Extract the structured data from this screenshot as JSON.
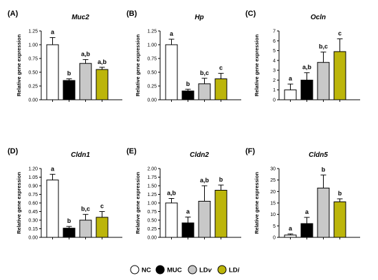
{
  "chart_data": [
    {
      "type": "bar",
      "panel": "(A)",
      "title": "Muc2",
      "ylabel": "Relative gene expression",
      "ylim": [
        0,
        1.25
      ],
      "yticks": [
        "0.00",
        "0.25",
        "0.50",
        "0.75",
        "1.00",
        "1.25"
      ],
      "categories": [
        "NC",
        "MUC",
        "LDv",
        "LDi"
      ],
      "values": [
        1.0,
        0.35,
        0.66,
        0.55
      ],
      "errors": [
        0.13,
        0.03,
        0.07,
        0.04
      ],
      "significance": [
        "a",
        "b",
        "a,b",
        "a,b"
      ]
    },
    {
      "type": "bar",
      "panel": "(B)",
      "title": "Hp",
      "ylabel": "Relative gene expression",
      "ylim": [
        0,
        1.25
      ],
      "yticks": [
        "0.00",
        "0.25",
        "0.50",
        "0.75",
        "1.00",
        "1.25"
      ],
      "categories": [
        "NC",
        "MUC",
        "LDv",
        "LDi"
      ],
      "values": [
        1.0,
        0.16,
        0.29,
        0.38
      ],
      "errors": [
        0.1,
        0.03,
        0.1,
        0.1
      ],
      "significance": [
        "a",
        "b",
        "b,c",
        "c"
      ]
    },
    {
      "type": "bar",
      "panel": "(C)",
      "title": "Ocln",
      "ylabel": "Relative gene expression",
      "ylim": [
        0,
        7
      ],
      "yticks": [
        "0",
        "1",
        "2",
        "3",
        "4",
        "5",
        "6",
        "7"
      ],
      "categories": [
        "NC",
        "MUC",
        "LDv",
        "LDi"
      ],
      "values": [
        1.0,
        2.0,
        3.8,
        4.9
      ],
      "errors": [
        0.6,
        0.75,
        1.05,
        1.3
      ],
      "significance": [
        "a",
        "a,b",
        "b,c",
        "c"
      ]
    },
    {
      "type": "bar",
      "panel": "(D)",
      "title": "Cldn1",
      "ylabel": "Relative gene expression",
      "ylim": [
        0,
        1.2
      ],
      "yticks": [
        "0.00",
        "0.15",
        "0.30",
        "0.45",
        "0.60",
        "0.75",
        "0.90",
        "1.05",
        "1.20"
      ],
      "categories": [
        "NC",
        "MUC",
        "LDv",
        "LDi"
      ],
      "values": [
        1.0,
        0.16,
        0.3,
        0.35
      ],
      "errors": [
        0.1,
        0.03,
        0.1,
        0.1
      ],
      "significance": [
        "a",
        "b",
        "b,c",
        "c"
      ]
    },
    {
      "type": "bar",
      "panel": "(E)",
      "title": "Cldn2",
      "ylabel": "Relative gene expression",
      "ylim": [
        0,
        2.0
      ],
      "yticks": [
        "0.00",
        "0.25",
        "0.50",
        "0.75",
        "1.00",
        "1.25",
        "1.50",
        "1.75",
        "2.00"
      ],
      "categories": [
        "NC",
        "MUC",
        "LDv",
        "LDi"
      ],
      "values": [
        1.0,
        0.42,
        1.05,
        1.37
      ],
      "errors": [
        0.13,
        0.17,
        0.45,
        0.15
      ],
      "significance": [
        "a,b",
        "a",
        "a,b",
        "b"
      ]
    },
    {
      "type": "bar",
      "panel": "(F)",
      "title": "Cldn5",
      "ylabel": "Relative gene expression",
      "ylim": [
        0,
        30
      ],
      "yticks": [
        "0",
        "5",
        "10",
        "15",
        "20",
        "25",
        "30"
      ],
      "categories": [
        "NC",
        "MUC",
        "LDv",
        "LDi"
      ],
      "values": [
        1.0,
        6.0,
        21.5,
        15.5
      ],
      "errors": [
        0.5,
        2.7,
        5.7,
        1.3
      ],
      "significance": [
        "a",
        "a",
        "b",
        "b"
      ]
    }
  ],
  "legend": {
    "items": [
      {
        "label": "NC",
        "color": "#ffffff"
      },
      {
        "label": "MUC",
        "color": "#000000"
      },
      {
        "label": "LD",
        "suffix": "v",
        "color": "#c8c8c8"
      },
      {
        "label": "LD",
        "suffix": "i",
        "color": "#bcb50a"
      }
    ]
  },
  "colors": {
    "NC": "#ffffff",
    "MUC": "#000000",
    "LDv": "#c8c8c8",
    "LDi": "#bcb50a",
    "edge": "#000000"
  }
}
